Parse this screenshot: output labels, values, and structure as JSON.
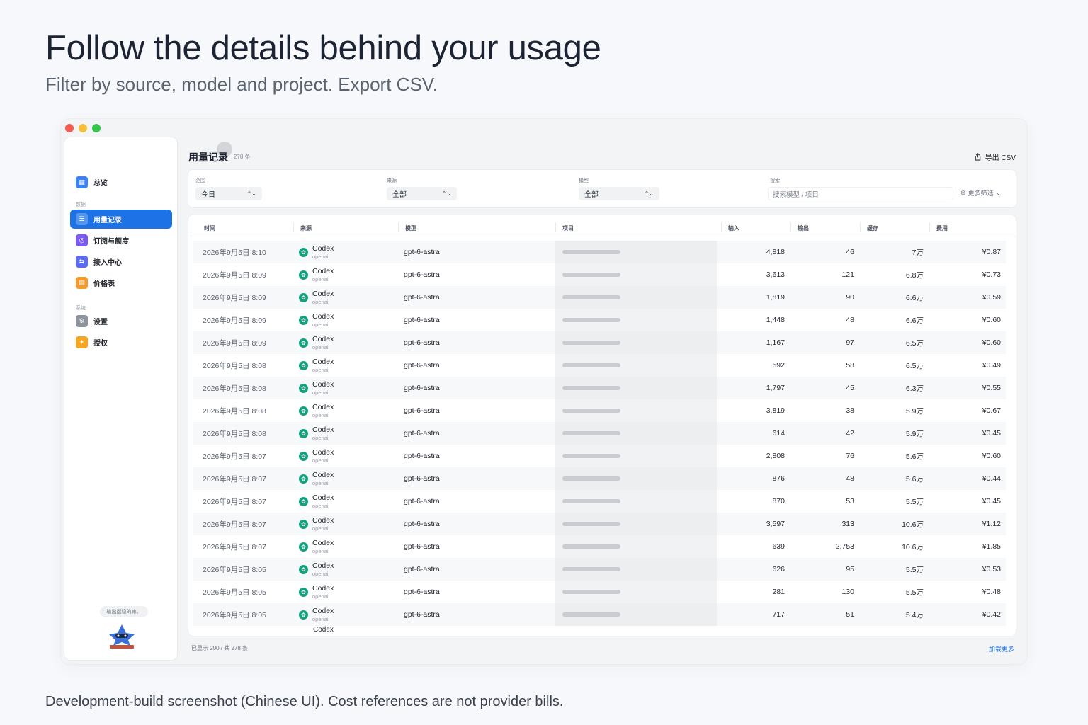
{
  "hero": {
    "title": "Follow the details behind your usage",
    "subtitle": "Filter by source, model and project. Export CSV."
  },
  "footnote": "Development-build screenshot (Chinese UI). Cost references are not provider bills.",
  "sidebar": {
    "overview": "总览",
    "section_data": "数据",
    "items": [
      {
        "label": "用量记录",
        "icon": "list-icon",
        "color": "#1d73e6",
        "active": true
      },
      {
        "label": "订阅与额度",
        "icon": "subscription-icon",
        "color": "#7a5af5"
      },
      {
        "label": "接入中心",
        "icon": "plug-icon",
        "color": "#5b6cf0"
      },
      {
        "label": "价格表",
        "icon": "price-table-icon",
        "color": "#f39a2b"
      }
    ],
    "section_system": "系统",
    "system_items": [
      {
        "label": "设置",
        "icon": "gear-icon",
        "color": "#8e949e"
      },
      {
        "label": "授权",
        "icon": "license-icon",
        "color": "#f5a623"
      }
    ],
    "tip": "输出挺稳的嘛。"
  },
  "page": {
    "title": "用量记录",
    "count": "278 条",
    "export_label": "导出 CSV"
  },
  "filters": {
    "range_label": "范围",
    "range_value": "今日",
    "source_label": "来源",
    "source_value": "全部",
    "model_label": "模型",
    "model_value": "全部",
    "search_label": "搜索",
    "search_placeholder": "搜索模型 / 项目",
    "more_label": "更多筛选"
  },
  "table": {
    "headers": {
      "time": "时间",
      "source": "来源",
      "model": "模型",
      "project": "项目",
      "input": "输入",
      "output": "输出",
      "cache": "缓存",
      "fee": "费用"
    },
    "source_sub": "openai",
    "rows": [
      {
        "time": "2026年9月5日 8:10",
        "source": "Codex",
        "model": "gpt-6-astra",
        "input": "4,818",
        "output": "46",
        "cache": "7万",
        "fee": "¥0.87"
      },
      {
        "time": "2026年9月5日 8:09",
        "source": "Codex",
        "model": "gpt-6-astra",
        "input": "3,613",
        "output": "121",
        "cache": "6.8万",
        "fee": "¥0.73"
      },
      {
        "time": "2026年9月5日 8:09",
        "source": "Codex",
        "model": "gpt-6-astra",
        "input": "1,819",
        "output": "90",
        "cache": "6.6万",
        "fee": "¥0.59"
      },
      {
        "time": "2026年9月5日 8:09",
        "source": "Codex",
        "model": "gpt-6-astra",
        "input": "1,448",
        "output": "48",
        "cache": "6.6万",
        "fee": "¥0.60"
      },
      {
        "time": "2026年9月5日 8:09",
        "source": "Codex",
        "model": "gpt-6-astra",
        "input": "1,167",
        "output": "97",
        "cache": "6.5万",
        "fee": "¥0.60"
      },
      {
        "time": "2026年9月5日 8:08",
        "source": "Codex",
        "model": "gpt-6-astra",
        "input": "592",
        "output": "58",
        "cache": "6.5万",
        "fee": "¥0.49"
      },
      {
        "time": "2026年9月5日 8:08",
        "source": "Codex",
        "model": "gpt-6-astra",
        "input": "1,797",
        "output": "45",
        "cache": "6.3万",
        "fee": "¥0.55"
      },
      {
        "time": "2026年9月5日 8:08",
        "source": "Codex",
        "model": "gpt-6-astra",
        "input": "3,819",
        "output": "38",
        "cache": "5.9万",
        "fee": "¥0.67"
      },
      {
        "time": "2026年9月5日 8:08",
        "source": "Codex",
        "model": "gpt-6-astra",
        "input": "614",
        "output": "42",
        "cache": "5.9万",
        "fee": "¥0.45"
      },
      {
        "time": "2026年9月5日 8:07",
        "source": "Codex",
        "model": "gpt-6-astra",
        "input": "2,808",
        "output": "76",
        "cache": "5.6万",
        "fee": "¥0.60"
      },
      {
        "time": "2026年9月5日 8:07",
        "source": "Codex",
        "model": "gpt-6-astra",
        "input": "876",
        "output": "48",
        "cache": "5.6万",
        "fee": "¥0.44"
      },
      {
        "time": "2026年9月5日 8:07",
        "source": "Codex",
        "model": "gpt-6-astra",
        "input": "870",
        "output": "53",
        "cache": "5.5万",
        "fee": "¥0.45"
      },
      {
        "time": "2026年9月5日 8:07",
        "source": "Codex",
        "model": "gpt-6-astra",
        "input": "3,597",
        "output": "313",
        "cache": "10.6万",
        "fee": "¥1.12"
      },
      {
        "time": "2026年9月5日 8:07",
        "source": "Codex",
        "model": "gpt-6-astra",
        "input": "639",
        "output": "2,753",
        "cache": "10.6万",
        "fee": "¥1.85"
      },
      {
        "time": "2026年9月5日 8:05",
        "source": "Codex",
        "model": "gpt-6-astra",
        "input": "626",
        "output": "95",
        "cache": "5.5万",
        "fee": "¥0.53"
      },
      {
        "time": "2026年9月5日 8:05",
        "source": "Codex",
        "model": "gpt-6-astra",
        "input": "281",
        "output": "130",
        "cache": "5.5万",
        "fee": "¥0.48"
      },
      {
        "time": "2026年9月5日 8:05",
        "source": "Codex",
        "model": "gpt-6-astra",
        "input": "717",
        "output": "51",
        "cache": "5.4万",
        "fee": "¥0.42"
      }
    ],
    "partial_row_source": "Codex"
  },
  "footer": {
    "shown": "已显示 200 / 共 278 条",
    "load_more": "加载更多"
  }
}
